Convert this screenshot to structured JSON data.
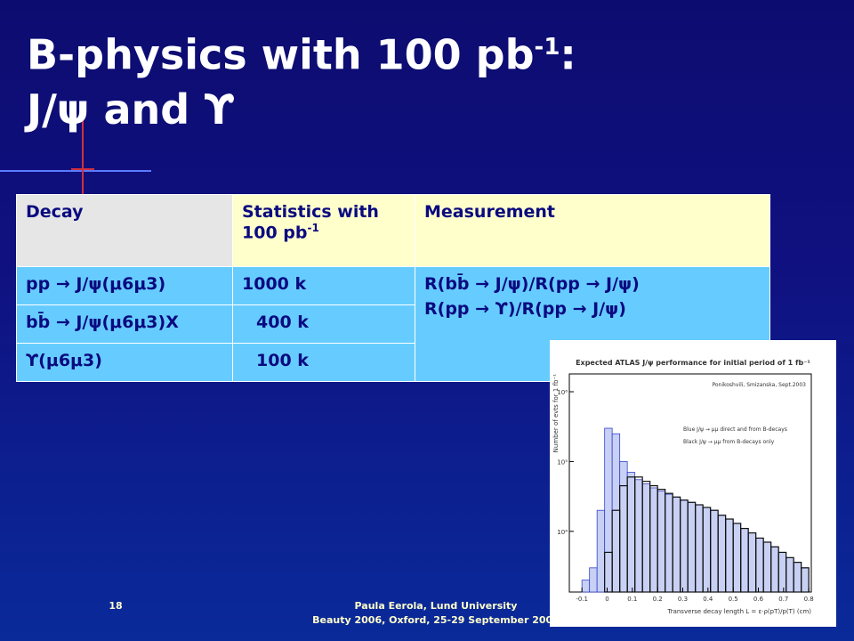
{
  "slide": {
    "title": {
      "line1": "B-physics with 100 pb",
      "sup": "-1",
      "line1_end": ":",
      "line2": "J/ψ and ϒ"
    },
    "table": {
      "header": [
        {
          "text": "Decay"
        },
        {
          "text": "Statistics with 100 pb",
          "sup": "-1"
        },
        {
          "text": "Measurement"
        }
      ],
      "rows": [
        [
          "pp → J/ψ(μ6μ3)",
          "1000 k"
        ],
        [
          "bb̄ → J/ψ(μ6μ3)X",
          "400 k"
        ],
        [
          "ϒ(μ6μ3)",
          "100 k"
        ]
      ],
      "measurement": [
        "R(bb̄ → J/ψ)/R(pp → J/ψ)",
        "R(pp → ϒ)/R(pp → J/ψ)"
      ]
    },
    "footer": {
      "page": "18",
      "author": "Paula Eerola, Lund University",
      "event": "Beauty 2006, Oxford, 25-29 September 2006"
    }
  },
  "plot": {
    "type": "histogram",
    "title": "Expected ATLAS J/ψ performance for initial period of 1 fb⁻¹",
    "annotation": "Ponikoshvili, Smizanska, Sept.2003",
    "xlabel": "Transverse decay length L = ε·ρ(pT)/p(T) (cm)",
    "ylabel": "Number of evts for 1 fb⁻¹",
    "log_y": true,
    "bins": [
      -0.1,
      -0.07,
      -0.04,
      -0.01,
      0.02,
      0.05,
      0.08,
      0.11,
      0.14,
      0.17,
      0.2,
      0.23,
      0.26,
      0.29,
      0.32,
      0.35,
      0.38,
      0.41,
      0.44,
      0.47,
      0.5,
      0.53,
      0.56,
      0.59,
      0.62,
      0.65,
      0.68,
      0.71,
      0.74,
      0.77,
      0.8
    ],
    "series": [
      {
        "name": "Blue J/ψ → μμ direct and from B-decays",
        "color": "#3344cc",
        "values": [
          2000,
          3000,
          20000,
          300000,
          250000,
          100000,
          70000,
          55000,
          48000,
          42000,
          38000,
          34000,
          31000,
          28000,
          26000,
          24000,
          22000,
          20000,
          17000,
          15000,
          13000,
          11000,
          9500,
          8000,
          7000,
          6000,
          5000,
          4200,
          3600,
          3000
        ]
      },
      {
        "name": "Black J/ψ → μμ from B-decays only",
        "color": "#111111",
        "values": [
          null,
          null,
          null,
          5000,
          20000,
          45000,
          60000,
          60000,
          52000,
          45000,
          40000,
          35000,
          31000,
          28000,
          26000,
          24000,
          22000,
          20000,
          17000,
          15000,
          13000,
          11000,
          9500,
          8000,
          7000,
          6000,
          5000,
          4200,
          3600,
          3000
        ]
      }
    ],
    "xlim": [
      -0.15,
      0.81
    ],
    "ylim": [
      1350,
      1800000
    ],
    "xticks": [
      -0.1,
      0,
      0.1,
      0.2,
      0.3,
      0.4,
      0.5,
      0.6,
      0.7,
      0.8
    ],
    "yticks": [
      {
        "value": 10000,
        "label": "10⁴"
      },
      {
        "value": 100000,
        "label": "10⁵"
      },
      {
        "value": 1000000,
        "label": "10⁶"
      }
    ]
  }
}
